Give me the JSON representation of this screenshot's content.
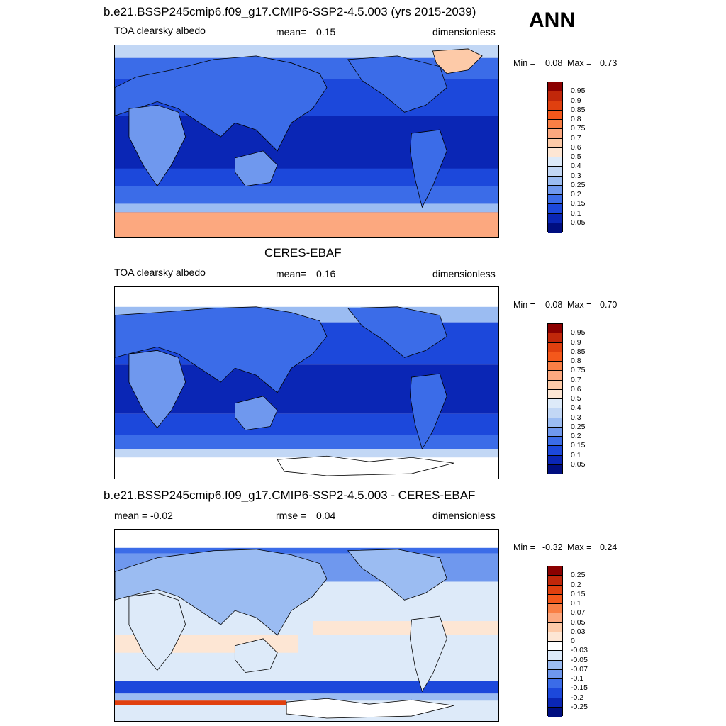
{
  "season": "ANN",
  "panels": [
    {
      "title": "b.e21.BSSP245cmip6.f09_g17.CMIP6-SSP2-4.5.003 (yrs 2015-2039)",
      "left_label": "TOA clearsky albedo",
      "mid_label": "mean=",
      "mid_value": "0.15",
      "right_label": "dimensionless",
      "min_label": "Min =",
      "min_value": "0.08",
      "max_label": "Max =",
      "max_value": "0.73"
    },
    {
      "title": "CERES-EBAF",
      "left_label": "TOA clearsky albedo",
      "mid_label": "mean=",
      "mid_value": "0.16",
      "right_label": "dimensionless",
      "min_label": "Min =",
      "min_value": "0.08",
      "max_label": "Max =",
      "max_value": "0.70"
    },
    {
      "title": "b.e21.BSSP245cmip6.f09_g17.CMIP6-SSP2-4.5.003 - CERES-EBAF",
      "left_label": "mean =  -0.02",
      "mid_label": "rmse =",
      "mid_value": "0.04",
      "right_label": "dimensionless",
      "min_label": "Min =",
      "min_value": "-0.32",
      "max_label": "Max =",
      "max_value": "0.24"
    }
  ],
  "colorbars": {
    "albedo": {
      "ticks": [
        "0.95",
        "0.9",
        "0.85",
        "0.8",
        "0.75",
        "0.7",
        "0.6",
        "0.5",
        "0.4",
        "0.3",
        "0.25",
        "0.2",
        "0.15",
        "0.1",
        "0.05"
      ],
      "colors": [
        "#8b0000",
        "#c1270a",
        "#e0400f",
        "#f4581b",
        "#f97f45",
        "#fca87f",
        "#fdcaa8",
        "#fde6d4",
        "#ddeaf9",
        "#c2d7f5",
        "#9bbcf2",
        "#6f98ee",
        "#3b6ce8",
        "#1c48db",
        "#0a26b5",
        "#000e80"
      ]
    },
    "diff": {
      "ticks": [
        "0.25",
        "0.2",
        "0.15",
        "0.1",
        "0.07",
        "0.05",
        "0.03",
        "0",
        "-0.03",
        "-0.05",
        "-0.07",
        "-0.1",
        "-0.15",
        "-0.2",
        "-0.25"
      ],
      "colors": [
        "#8b0000",
        "#c1270a",
        "#e0400f",
        "#f4581b",
        "#f97f45",
        "#fca87f",
        "#fdcaa8",
        "#fde6d4",
        "#ffffff",
        "#ddeaf9",
        "#9bbcf2",
        "#6f98ee",
        "#3b6ce8",
        "#1c48db",
        "#0a26b5",
        "#000e80"
      ]
    }
  }
}
